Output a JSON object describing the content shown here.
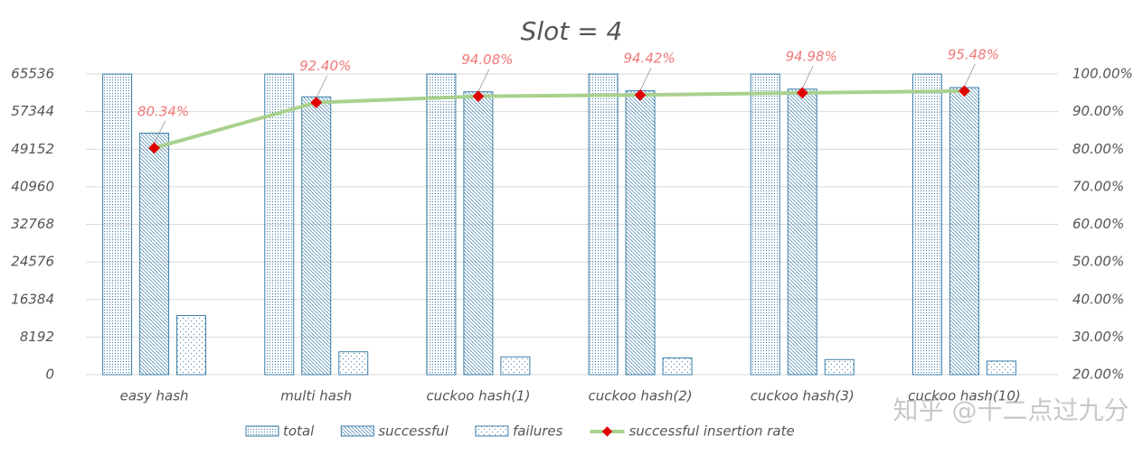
{
  "chart_data": {
    "type": "bar",
    "title": "Slot = 4",
    "categories": [
      "easy hash",
      "multi hash",
      "cuckoo hash(1)",
      "cuckoo hash(2)",
      "cuckoo hash(3)",
      "cuckoo hash(10)"
    ],
    "series": [
      {
        "name": "total",
        "type": "bar",
        "color": "#3b7ea8",
        "values": [
          65536,
          65536,
          65536,
          65536,
          65536,
          65536
        ]
      },
      {
        "name": "successful",
        "type": "bar",
        "color": "#3b7ea8",
        "values": [
          52652,
          60555,
          61656,
          61879,
          62246,
          62574
        ]
      },
      {
        "name": "failures",
        "type": "bar",
        "color": "#3b7ea8",
        "values": [
          12884,
          4981,
          3880,
          3657,
          3290,
          2962
        ]
      },
      {
        "name": "successful insertion rate",
        "type": "line",
        "axis": "y2",
        "color": "#a9d18e",
        "marker_color": "#e00000",
        "values": [
          80.34,
          92.4,
          94.08,
          94.42,
          94.98,
          95.48
        ],
        "value_labels": [
          "80.34%",
          "92.40%",
          "94.08%",
          "94.42%",
          "94.98%",
          "95.48%"
        ]
      }
    ],
    "ylim": [
      0,
      65536
    ],
    "yticks": [
      0,
      8192,
      16384,
      24576,
      32768,
      40960,
      49152,
      57344,
      65536
    ],
    "y2lim": [
      20,
      100
    ],
    "y2ticks": [
      {
        "value": 20,
        "label": "20.00%"
      },
      {
        "value": 30,
        "label": "30.00%"
      },
      {
        "value": 40,
        "label": "40.00%"
      },
      {
        "value": 50,
        "label": "50.00%"
      },
      {
        "value": 60,
        "label": "60.00%"
      },
      {
        "value": 70,
        "label": "70.00%"
      },
      {
        "value": 80,
        "label": "80.00%"
      },
      {
        "value": 90,
        "label": "90.00%"
      },
      {
        "value": 100,
        "label": "100.00%"
      }
    ],
    "grid": true,
    "legend": "bottom",
    "watermark": "知乎 @十二点过九分"
  }
}
